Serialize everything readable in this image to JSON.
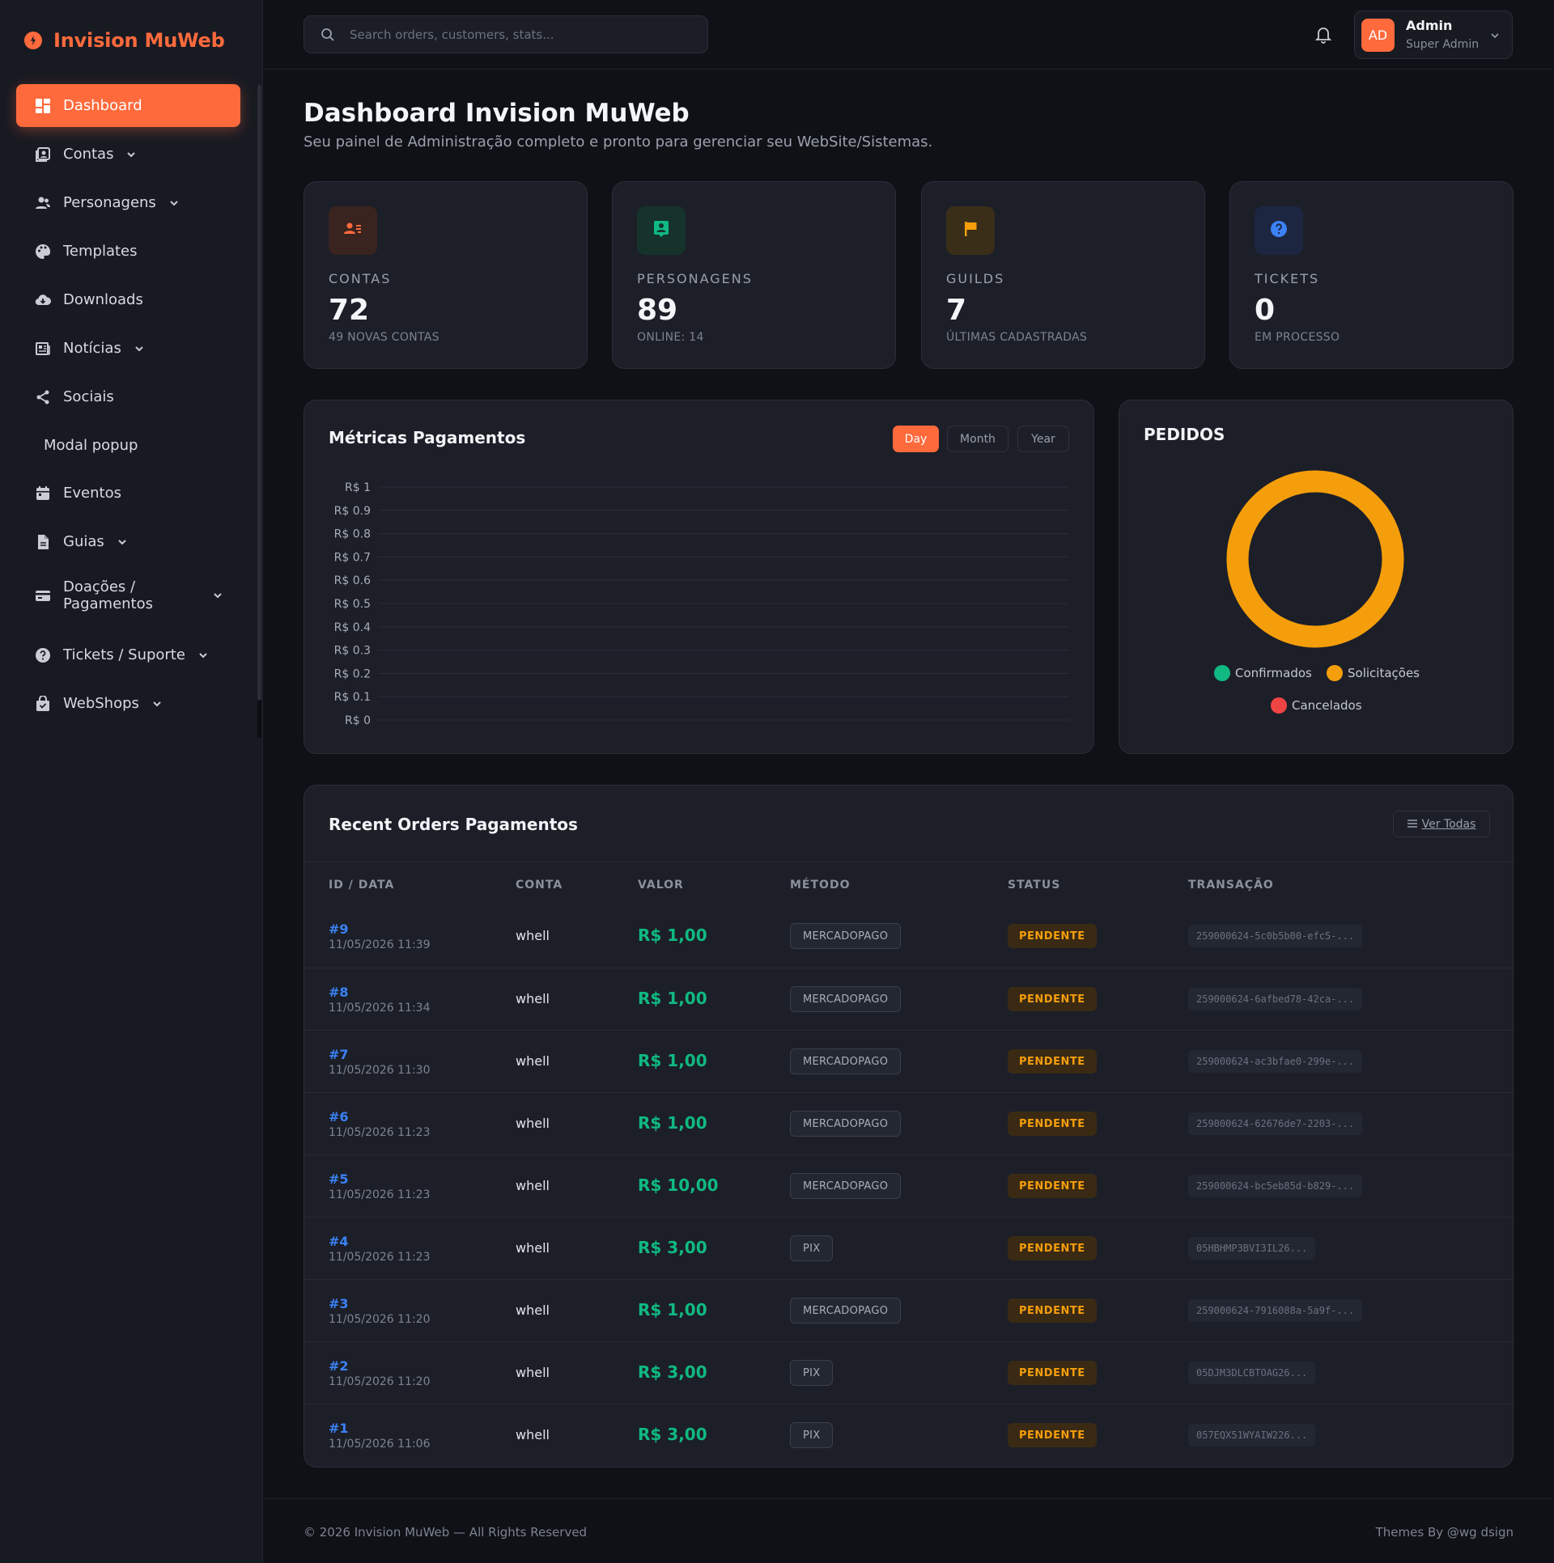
{
  "brand": {
    "name": "Invision MuWeb"
  },
  "sidebar": {
    "items": [
      {
        "label": "Dashboard",
        "icon": "dashboard-icon",
        "active": true,
        "chevron": false
      },
      {
        "label": "Contas",
        "icon": "contacts-icon",
        "chevron": true
      },
      {
        "label": "Personagens",
        "icon": "users-icon",
        "chevron": true
      },
      {
        "label": "Templates",
        "icon": "palette-icon",
        "chevron": false
      },
      {
        "label": "Downloads",
        "icon": "cloud-download-icon",
        "chevron": false
      },
      {
        "label": "Notícias",
        "icon": "newspaper-icon",
        "chevron": true
      },
      {
        "label": "Sociais",
        "icon": "share-icon",
        "chevron": false
      },
      {
        "label": "Modal popup",
        "icon": "",
        "chevron": false
      },
      {
        "label": "Eventos",
        "icon": "calendar-icon",
        "chevron": false
      },
      {
        "label": "Guias",
        "icon": "document-icon",
        "chevron": true
      },
      {
        "label": "Doações /",
        "label2": "Pagamentos",
        "icon": "credit-card-icon",
        "chevron": true
      },
      {
        "label": "Tickets / Suporte",
        "icon": "help-icon",
        "chevron": true
      },
      {
        "label": "WebShops",
        "icon": "shopping-bag-icon",
        "chevron": true
      }
    ]
  },
  "search": {
    "placeholder": "Search orders, customers, stats..."
  },
  "user": {
    "initials": "AD",
    "name": "Admin",
    "role": "Super Admin"
  },
  "page": {
    "title": "Dashboard Invision MuWeb",
    "subtitle": "Seu painel de Administração completo e pronto para gerenciar seu WebSite/Sistemas."
  },
  "stats": [
    {
      "label": "CONTAS",
      "value": "72",
      "foot": "49 NOVAS CONTAS",
      "icon": "contacts-icon",
      "accent": "#ff6a3d",
      "bg": "#3a2420"
    },
    {
      "label": "PERSONAGENS",
      "value": "89",
      "foot": "ONLINE: 14",
      "icon": "person-badge-icon",
      "accent": "#10b981",
      "bg": "#15332b"
    },
    {
      "label": "GUILDS",
      "value": "7",
      "foot": "ÚLTIMAS CADASTRADAS",
      "icon": "flag-icon",
      "accent": "#f59e0b",
      "bg": "#3a2e18"
    },
    {
      "label": "TICKETS",
      "value": "0",
      "foot": "EM PROCESSO",
      "icon": "question-icon",
      "accent": "#3b82f6",
      "bg": "#1c2640"
    }
  ],
  "chart": {
    "title": "Métricas Pagamentos",
    "tabs": [
      "Day",
      "Month",
      "Year"
    ],
    "active_tab": "Day"
  },
  "chart_data": {
    "type": "line",
    "title": "Métricas Pagamentos",
    "xlabel": "",
    "ylabel": "",
    "ylim": [
      0,
      1
    ],
    "y_ticks": [
      "R$ 1",
      "R$ 0.9",
      "R$ 0.8",
      "R$ 0.7",
      "R$ 0.6",
      "R$ 0.5",
      "R$ 0.4",
      "R$ 0.3",
      "R$ 0.2",
      "R$ 0.1",
      "R$ 0"
    ],
    "categories": [],
    "series": [],
    "grid": true
  },
  "pedidos": {
    "title": "PEDIDOS",
    "legend": [
      {
        "label": "Confirmados",
        "color": "#10b981"
      },
      {
        "label": "Solicitações",
        "color": "#f59e0b"
      },
      {
        "label": "Cancelados",
        "color": "#ef4444"
      }
    ],
    "donut_color": "#f59e0b"
  },
  "orders": {
    "title": "Recent Orders Pagamentos",
    "view_all": "Ver Todas",
    "columns": [
      "ID / DATA",
      "CONTA",
      "VALOR",
      "MÉTODO",
      "STATUS",
      "TRANSAÇÃO"
    ],
    "rows": [
      {
        "id": "#9",
        "date": "11/05/2026 11:39",
        "conta": "whell",
        "valor": "R$ 1,00",
        "metodo": "MERCADOPAGO",
        "status": "PENDENTE",
        "tx": "259000624-5c0b5b00-efc5-..."
      },
      {
        "id": "#8",
        "date": "11/05/2026 11:34",
        "conta": "whell",
        "valor": "R$ 1,00",
        "metodo": "MERCADOPAGO",
        "status": "PENDENTE",
        "tx": "259000624-6afbed78-42ca-..."
      },
      {
        "id": "#7",
        "date": "11/05/2026 11:30",
        "conta": "whell",
        "valor": "R$ 1,00",
        "metodo": "MERCADOPAGO",
        "status": "PENDENTE",
        "tx": "259000624-ac3bfae0-299e-..."
      },
      {
        "id": "#6",
        "date": "11/05/2026 11:23",
        "conta": "whell",
        "valor": "R$ 1,00",
        "metodo": "MERCADOPAGO",
        "status": "PENDENTE",
        "tx": "259000624-62676de7-2203-..."
      },
      {
        "id": "#5",
        "date": "11/05/2026 11:23",
        "conta": "whell",
        "valor": "R$ 10,00",
        "metodo": "MERCADOPAGO",
        "status": "PENDENTE",
        "tx": "259000624-bc5eb85d-b829-..."
      },
      {
        "id": "#4",
        "date": "11/05/2026 11:23",
        "conta": "whell",
        "valor": "R$ 3,00",
        "metodo": "PIX",
        "status": "PENDENTE",
        "tx": "05HBHMP3BVI3IL26..."
      },
      {
        "id": "#3",
        "date": "11/05/2026 11:20",
        "conta": "whell",
        "valor": "R$ 1,00",
        "metodo": "MERCADOPAGO",
        "status": "PENDENTE",
        "tx": "259000624-7916088a-5a9f-..."
      },
      {
        "id": "#2",
        "date": "11/05/2026 11:20",
        "conta": "whell",
        "valor": "R$ 3,00",
        "metodo": "PIX",
        "status": "PENDENTE",
        "tx": "05DJM3DLCBTOAG26..."
      },
      {
        "id": "#1",
        "date": "11/05/2026 11:06",
        "conta": "whell",
        "valor": "R$ 3,00",
        "metodo": "PIX",
        "status": "PENDENTE",
        "tx": "057EQX51WYAIW226..."
      }
    ]
  },
  "footer": {
    "left": "© 2026 Invision MuWeb — All Rights Reserved",
    "right": "Themes By @wg dsign"
  }
}
